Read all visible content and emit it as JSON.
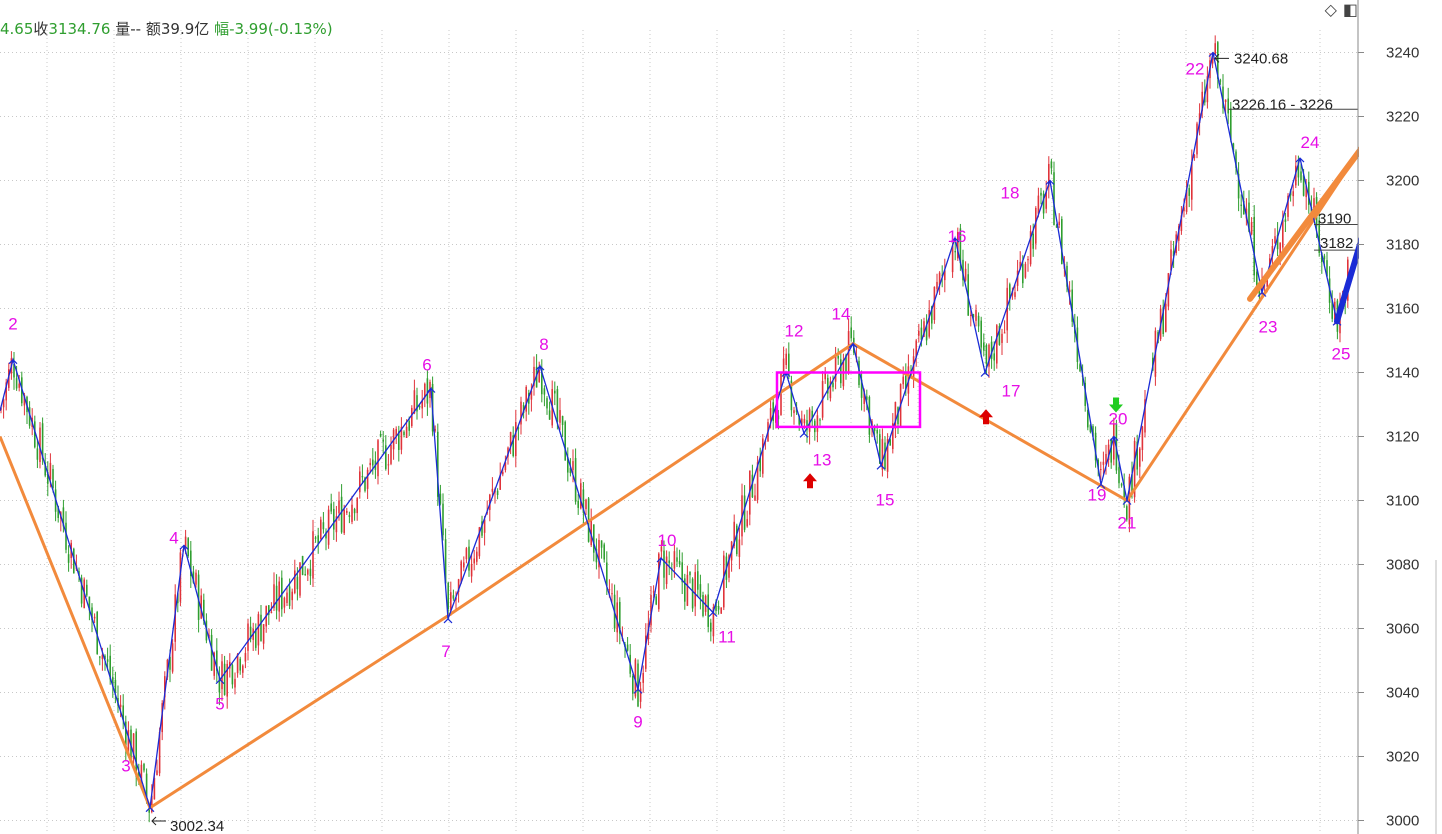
{
  "info_bar": {
    "prev_value": "4.65",
    "close_label": "收",
    "close_value": "3134.76",
    "volume_label": "量",
    "volume_value": "--",
    "amount_label": "额",
    "amount_value": "39.9亿",
    "change_label": "幅",
    "change_value": "-3.99(-0.13%)"
  },
  "icons": {
    "diamond": "◇",
    "panel": "◧"
  },
  "colors": {
    "up_candle": "#e0333a",
    "down_candle": "#2f9e2f",
    "wave_line": "#1a2bd6",
    "trend_line": "#f28a3c",
    "labels": "#e60ee6",
    "box": "#ff00ff",
    "arrow_up": "#dd0000",
    "arrow_down": "#22cc22"
  },
  "chart_data": {
    "type": "line",
    "y_axis": {
      "min": 3000,
      "max": 3245,
      "ticks": [
        3000,
        3020,
        3040,
        3060,
        3080,
        3100,
        3120,
        3140,
        3160,
        3180,
        3200,
        3220,
        3240
      ]
    },
    "grid": true,
    "wave_series": {
      "points": [
        {
          "label": "2",
          "y": 3144
        },
        {
          "label": "3",
          "y": 3004
        },
        {
          "label": "4",
          "y": 3086
        },
        {
          "label": "5",
          "y": 3044
        },
        {
          "label": "6",
          "y": 3135
        },
        {
          "label": "7",
          "y": 3063
        },
        {
          "label": "8",
          "y": 3142
        },
        {
          "label": "9",
          "y": 3041
        },
        {
          "label": "10",
          "y": 3082
        },
        {
          "label": "11",
          "y": 3065
        },
        {
          "label": "12",
          "y": 3140
        },
        {
          "label": "13",
          "y": 3121
        },
        {
          "label": "14",
          "y": 3149
        },
        {
          "label": "15",
          "y": 3111
        },
        {
          "label": "16",
          "y": 3182
        },
        {
          "label": "17",
          "y": 3140
        },
        {
          "label": "18",
          "y": 3200
        },
        {
          "label": "19",
          "y": 3105
        },
        {
          "label": "20",
          "y": 3120
        },
        {
          "label": "21",
          "y": 3100
        },
        {
          "label": "22",
          "y": 3240
        },
        {
          "label": "23",
          "y": 3165
        },
        {
          "label": "24",
          "y": 3207
        },
        {
          "label": "25",
          "y": 3156
        }
      ]
    },
    "trend_series": {
      "y": [
        3120,
        3004,
        3064,
        3149,
        3100,
        3218
      ]
    },
    "annotations": [
      {
        "text": "3002.34",
        "y": 3002.34
      },
      {
        "text": "3240.68",
        "y": 3240.68
      },
      {
        "text": "3226.16 - 3226",
        "y": 3226
      },
      {
        "text": "3190",
        "y": 3190
      },
      {
        "text": "3182",
        "y": 3182
      }
    ],
    "consolidation_box": {
      "y_top": 3140,
      "y_bottom": 3123
    },
    "signals": [
      {
        "type": "buy",
        "y": 3106
      },
      {
        "type": "buy",
        "y": 3126
      },
      {
        "type": "sell",
        "y": 3130
      }
    ]
  }
}
